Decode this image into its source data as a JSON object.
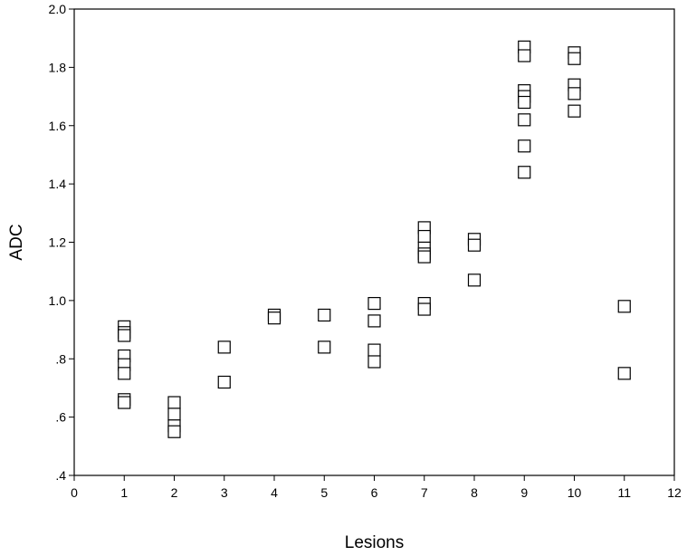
{
  "chart_data": {
    "type": "scatter",
    "title": "",
    "xlabel": "Lesions",
    "ylabel": "ADC",
    "xlim": [
      0,
      12
    ],
    "ylim": [
      0.4,
      2.0
    ],
    "x_ticks": [
      0,
      1,
      2,
      3,
      4,
      5,
      6,
      7,
      8,
      9,
      10,
      11,
      12
    ],
    "x_tick_labels": [
      "0",
      "1",
      "2",
      "3",
      "4",
      "5",
      "6",
      "7",
      "8",
      "9",
      "10",
      "11",
      "12"
    ],
    "y_ticks": [
      0.4,
      0.6,
      0.8,
      1.0,
      1.2,
      1.4,
      1.6,
      1.8,
      2.0
    ],
    "y_tick_labels": [
      ".4",
      ".6",
      ".8",
      "1.0",
      "1.2",
      "1.4",
      "1.6",
      "1.8",
      "2.0"
    ],
    "grid": false,
    "marker": "open-square",
    "points": [
      {
        "x": 1,
        "y": 0.91
      },
      {
        "x": 1,
        "y": 0.89
      },
      {
        "x": 1,
        "y": 0.88
      },
      {
        "x": 1,
        "y": 0.81
      },
      {
        "x": 1,
        "y": 0.78
      },
      {
        "x": 1,
        "y": 0.75
      },
      {
        "x": 1,
        "y": 0.66
      },
      {
        "x": 1,
        "y": 0.65
      },
      {
        "x": 2,
        "y": 0.65
      },
      {
        "x": 2,
        "y": 0.61
      },
      {
        "x": 2,
        "y": 0.57
      },
      {
        "x": 2,
        "y": 0.55
      },
      {
        "x": 3,
        "y": 0.84
      },
      {
        "x": 3,
        "y": 0.72
      },
      {
        "x": 4,
        "y": 0.95
      },
      {
        "x": 4,
        "y": 0.94
      },
      {
        "x": 5,
        "y": 0.95
      },
      {
        "x": 5,
        "y": 0.84
      },
      {
        "x": 6,
        "y": 0.99
      },
      {
        "x": 6,
        "y": 0.93
      },
      {
        "x": 6,
        "y": 0.83
      },
      {
        "x": 6,
        "y": 0.79
      },
      {
        "x": 7,
        "y": 1.25
      },
      {
        "x": 7,
        "y": 1.22
      },
      {
        "x": 7,
        "y": 1.18
      },
      {
        "x": 7,
        "y": 1.16
      },
      {
        "x": 7,
        "y": 1.15
      },
      {
        "x": 7,
        "y": 0.99
      },
      {
        "x": 7,
        "y": 0.97
      },
      {
        "x": 8,
        "y": 1.21
      },
      {
        "x": 8,
        "y": 1.19
      },
      {
        "x": 8,
        "y": 1.07
      },
      {
        "x": 9,
        "y": 1.87
      },
      {
        "x": 9,
        "y": 1.84
      },
      {
        "x": 9,
        "y": 1.72
      },
      {
        "x": 9,
        "y": 1.7
      },
      {
        "x": 9,
        "y": 1.68
      },
      {
        "x": 9,
        "y": 1.62
      },
      {
        "x": 9,
        "y": 1.53
      },
      {
        "x": 9,
        "y": 1.44
      },
      {
        "x": 10,
        "y": 1.85
      },
      {
        "x": 10,
        "y": 1.83
      },
      {
        "x": 10,
        "y": 1.74
      },
      {
        "x": 10,
        "y": 1.71
      },
      {
        "x": 10,
        "y": 1.65
      },
      {
        "x": 11,
        "y": 0.98
      },
      {
        "x": 11,
        "y": 0.75
      }
    ]
  }
}
